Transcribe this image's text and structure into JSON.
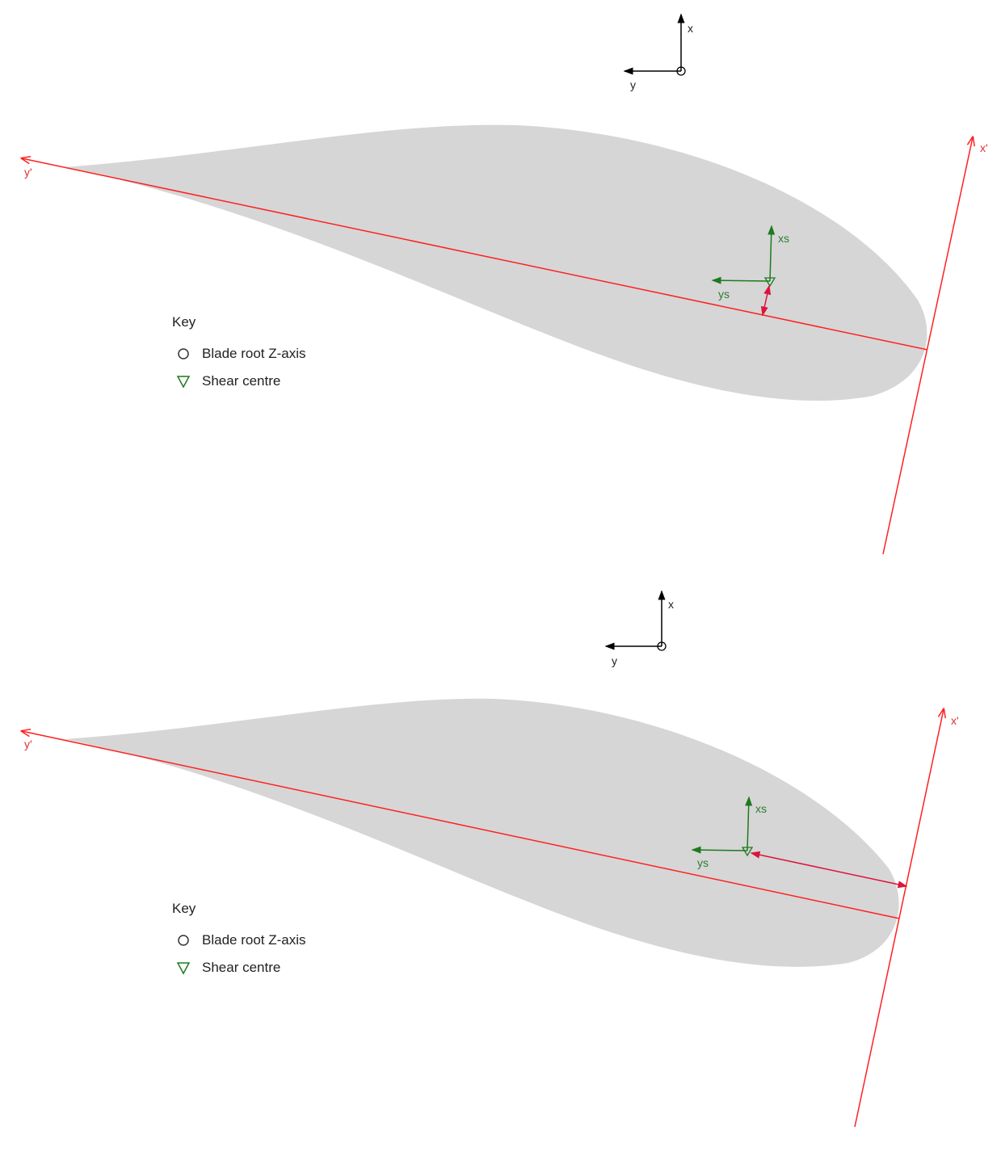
{
  "colors": {
    "airfoil_fill": "#d6d6d6",
    "principal_axes": "#ff2020",
    "shear_axes": "#1e7a1e",
    "offset_arrow": "#dc143c",
    "reference_axes": "#000000"
  },
  "panels": [
    {
      "reference_axes": {
        "x_label": "x",
        "y_label": "y"
      },
      "principal_axes": {
        "x_label": "x'",
        "y_label": "y'"
      },
      "shear_axes": {
        "x_label": "xs",
        "y_label": "ys"
      },
      "key": {
        "title": "Key",
        "items": [
          {
            "symbol": "circle-icon",
            "label": "Blade root Z-axis"
          },
          {
            "symbol": "triangle-down-icon",
            "label": "Shear centre"
          }
        ]
      }
    },
    {
      "reference_axes": {
        "x_label": "x",
        "y_label": "y"
      },
      "principal_axes": {
        "x_label": "x'",
        "y_label": "y'"
      },
      "shear_axes": {
        "x_label": "xs",
        "y_label": "ys"
      },
      "key": {
        "title": "Key",
        "items": [
          {
            "symbol": "circle-icon",
            "label": "Blade root Z-axis"
          },
          {
            "symbol": "triangle-down-icon",
            "label": "Shear centre"
          }
        ]
      }
    }
  ]
}
